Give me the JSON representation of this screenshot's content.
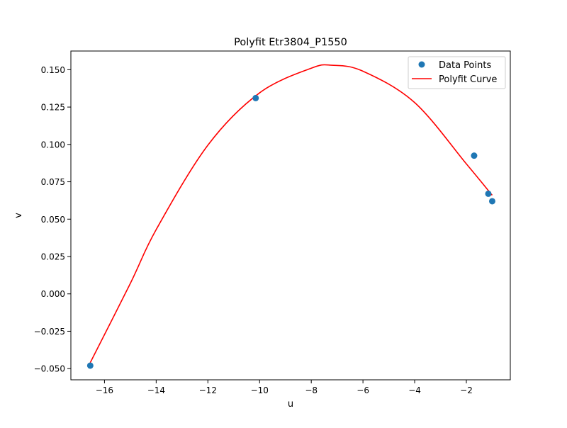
{
  "chart_data": {
    "type": "scatter",
    "title": "Polyfit Etr3804_P1550",
    "xlabel": "u",
    "ylabel": "v",
    "xlim": [
      -17.3,
      -0.3
    ],
    "ylim": [
      -0.0575,
      0.1625
    ],
    "x_ticks": [
      -16,
      -14,
      -12,
      -10,
      -8,
      -6,
      -4,
      -2
    ],
    "x_tick_labels": [
      "−16",
      "−14",
      "−12",
      "−10",
      "−8",
      "−6",
      "−4",
      "−2"
    ],
    "y_ticks": [
      -0.05,
      -0.025,
      0.0,
      0.025,
      0.05,
      0.075,
      0.1,
      0.125,
      0.15
    ],
    "y_tick_labels": [
      "−0.050",
      "−0.025",
      "0.000",
      "0.025",
      "0.050",
      "0.075",
      "0.100",
      "0.125",
      "0.150"
    ],
    "grid": false,
    "legend_position": "top-right",
    "series": [
      {
        "name": "Data Points",
        "kind": "scatter",
        "color": "#1f77b4",
        "points": [
          {
            "x": -16.55,
            "y": -0.048
          },
          {
            "x": -10.15,
            "y": 0.131
          },
          {
            "x": -1.7,
            "y": 0.0925
          },
          {
            "x": -1.15,
            "y": 0.067
          },
          {
            "x": -1.0,
            "y": 0.062
          }
        ]
      },
      {
        "name": "Polyfit Curve",
        "kind": "line",
        "color": "#ff0000",
        "points": [
          {
            "x": -16.55,
            "y": -0.046
          },
          {
            "x": -15.0,
            "y": 0.007
          },
          {
            "x": -14.0,
            "y": 0.043
          },
          {
            "x": -12.0,
            "y": 0.0995
          },
          {
            "x": -10.0,
            "y": 0.1345
          },
          {
            "x": -8.0,
            "y": 0.151
          },
          {
            "x": -7.2,
            "y": 0.153
          },
          {
            "x": -6.0,
            "y": 0.149
          },
          {
            "x": -4.0,
            "y": 0.128
          },
          {
            "x": -2.0,
            "y": 0.087
          },
          {
            "x": -1.0,
            "y": 0.066
          }
        ]
      }
    ]
  }
}
